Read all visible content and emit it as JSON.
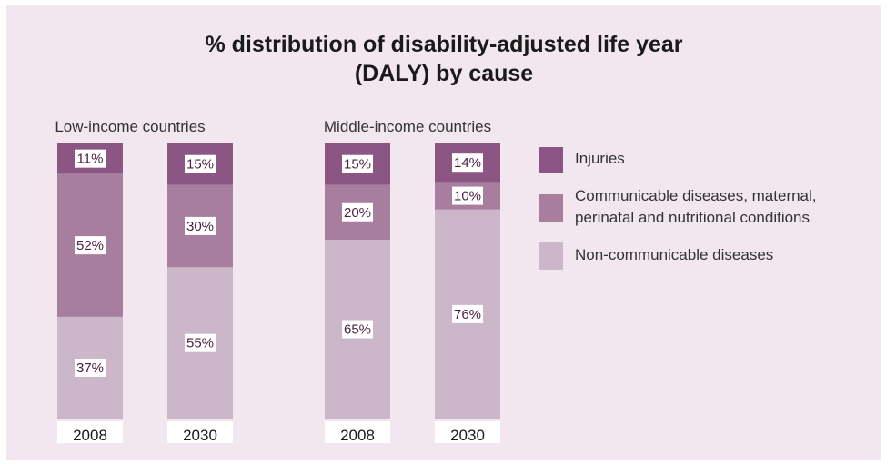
{
  "chart_data": {
    "type": "bar",
    "stacked": true,
    "title_lines": [
      "% distribution of disability-adjusted life year",
      "(DALY) by cause"
    ],
    "groups": [
      {
        "label": "Low-income countries",
        "bars": [
          {
            "year": "2008",
            "segments": [
              {
                "series": "Non-communicable diseases",
                "value": 37,
                "label": "37%"
              },
              {
                "series": "Communicable diseases, maternal, perinatal and nutritional conditions",
                "value": 52,
                "label": "52%"
              },
              {
                "series": "Injuries",
                "value": 11,
                "label": "11%"
              }
            ]
          },
          {
            "year": "2030",
            "segments": [
              {
                "series": "Non-communicable diseases",
                "value": 55,
                "label": "55%"
              },
              {
                "series": "Communicable diseases, maternal, perinatal and nutritional conditions",
                "value": 30,
                "label": "30%"
              },
              {
                "series": "Injuries",
                "value": 15,
                "label": "15%"
              }
            ]
          }
        ]
      },
      {
        "label": "Middle-income countries",
        "bars": [
          {
            "year": "2008",
            "segments": [
              {
                "series": "Non-communicable diseases",
                "value": 65,
                "label": "65%"
              },
              {
                "series": "Communicable diseases, maternal, perinatal and nutritional conditions",
                "value": 20,
                "label": "20%"
              },
              {
                "series": "Injuries",
                "value": 15,
                "label": "15%"
              }
            ]
          },
          {
            "year": "2030",
            "segments": [
              {
                "series": "Non-communicable diseases",
                "value": 76,
                "label": "76%"
              },
              {
                "series": "Communicable diseases, maternal, perinatal and nutritional conditions",
                "value": 10,
                "label": "10%"
              },
              {
                "series": "Injuries",
                "value": 14,
                "label": "14%"
              }
            ]
          }
        ]
      }
    ],
    "legend": {
      "placement": "right",
      "items": [
        {
          "series": "Injuries",
          "lines": [
            "Injuries"
          ],
          "color": "#8b5683"
        },
        {
          "series": "Communicable diseases, maternal, perinatal and nutritional conditions",
          "lines": [
            "Communicable diseases, maternal,",
            "perinatal and nutritional conditions"
          ],
          "color": "#a87e9f"
        },
        {
          "series": "Non-communicable diseases",
          "lines": [
            "Non-communicable diseases"
          ],
          "color": "#ccb6c9"
        }
      ]
    },
    "colors": {
      "Injuries": "#8b5683",
      "Communicable diseases, maternal, perinatal and nutritional conditions": "#a87e9f",
      "Non-communicable diseases": "#ccb6c9",
      "background": "#f2e7ef"
    },
    "ylim": [
      0,
      100
    ],
    "grid": false
  }
}
